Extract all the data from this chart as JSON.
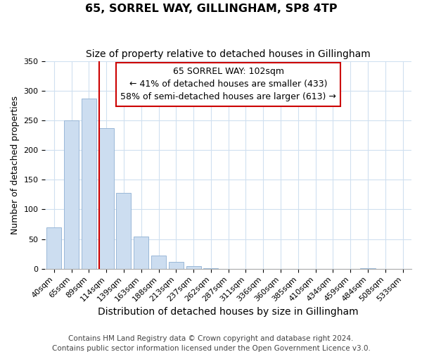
{
  "title": "65, SORREL WAY, GILLINGHAM, SP8 4TP",
  "subtitle": "Size of property relative to detached houses in Gillingham",
  "xlabel": "Distribution of detached houses by size in Gillingham",
  "ylabel": "Number of detached properties",
  "bar_labels": [
    "40sqm",
    "65sqm",
    "89sqm",
    "114sqm",
    "139sqm",
    "163sqm",
    "188sqm",
    "213sqm",
    "237sqm",
    "262sqm",
    "287sqm",
    "311sqm",
    "336sqm",
    "360sqm",
    "385sqm",
    "410sqm",
    "434sqm",
    "459sqm",
    "484sqm",
    "508sqm",
    "533sqm"
  ],
  "bar_values": [
    70,
    250,
    287,
    237,
    128,
    54,
    22,
    11,
    4,
    1,
    0,
    0,
    0,
    0,
    0,
    0,
    0,
    0,
    1,
    0,
    0
  ],
  "bar_color": "#ccddf0",
  "bar_edge_color": "#9ab8d8",
  "ylim": [
    0,
    350
  ],
  "yticks": [
    0,
    50,
    100,
    150,
    200,
    250,
    300,
    350
  ],
  "redline_bar_index": 3,
  "annotation_title": "65 SORREL WAY: 102sqm",
  "annotation_line1": "← 41% of detached houses are smaller (433)",
  "annotation_line2": "58% of semi-detached houses are larger (613) →",
  "annotation_box_color": "#ffffff",
  "annotation_border_color": "#cc0000",
  "redline_color": "#cc0000",
  "footer_line1": "Contains HM Land Registry data © Crown copyright and database right 2024.",
  "footer_line2": "Contains public sector information licensed under the Open Government Licence v3.0.",
  "title_fontsize": 11.5,
  "subtitle_fontsize": 10,
  "xlabel_fontsize": 10,
  "ylabel_fontsize": 9,
  "tick_fontsize": 8,
  "annotation_fontsize": 9,
  "footer_fontsize": 7.5,
  "background_color": "#ffffff"
}
